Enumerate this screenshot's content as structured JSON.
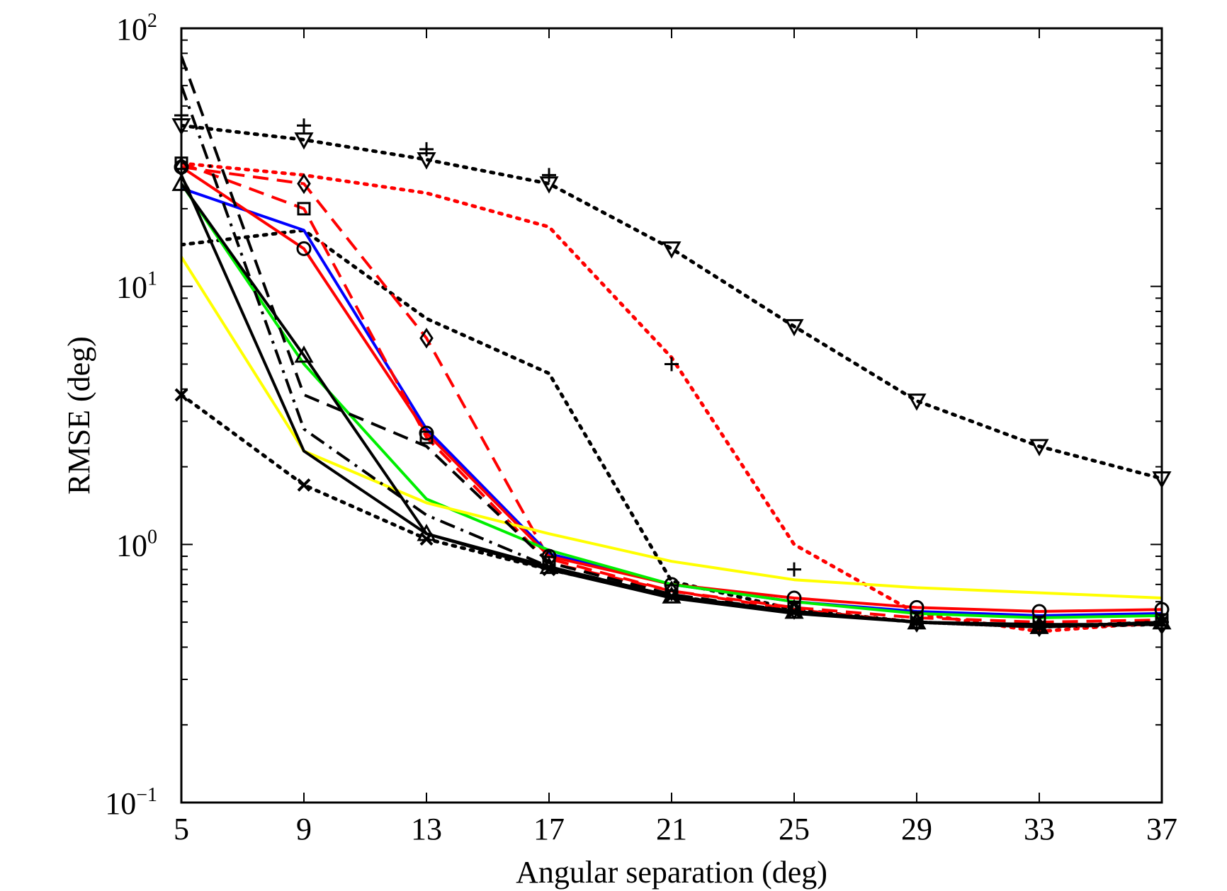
{
  "chart_data": {
    "type": "line",
    "title": "",
    "xlabel": "Angular separation (deg)",
    "ylabel": "RMSE (deg)",
    "x": [
      5,
      9,
      13,
      17,
      21,
      25,
      29,
      33,
      37
    ],
    "x_ticks": [
      "5",
      "9",
      "13",
      "17",
      "21",
      "25",
      "29",
      "33",
      "37"
    ],
    "xlim": [
      5,
      37
    ],
    "y_scale": "log",
    "ylim": [
      0.1,
      100
    ],
    "y_ticks": [
      {
        "base": "10",
        "exp": "−1",
        "value": 0.1
      },
      {
        "base": "10",
        "exp": "0",
        "value": 1
      },
      {
        "base": "10",
        "exp": "1",
        "value": 10
      },
      {
        "base": "10",
        "exp": "2",
        "value": 100
      }
    ],
    "grid": false,
    "legend": "none",
    "series": [
      {
        "color": "#000000",
        "dash": "dot",
        "marker": "triangle-down",
        "width": 5,
        "values": [
          42,
          37,
          31,
          25,
          14,
          7,
          3.6,
          2.4,
          1.8
        ]
      },
      {
        "color": "#000000",
        "dash": "none",
        "marker": "plus",
        "values": [
          46,
          42,
          34,
          27,
          5.0,
          0.8,
          0.49,
          0.48,
          0.5
        ]
      },
      {
        "color": "#ff0000",
        "dash": "dot",
        "marker": "none",
        "width": 5,
        "values": [
          30,
          27,
          23,
          17,
          5.3,
          1.0,
          0.54,
          0.46,
          0.5
        ]
      },
      {
        "color": "#000000",
        "dash": "dot",
        "marker": "none",
        "width": 5,
        "values": [
          14.5,
          16.5,
          7.5,
          4.6,
          0.72,
          0.56,
          0.5,
          0.48,
          0.49
        ]
      },
      {
        "color": "#ff0000",
        "dash": "dash",
        "marker": "diamond",
        "width": 4,
        "values": [
          29,
          25,
          6.3,
          0.88,
          0.66,
          0.56,
          0.5,
          0.48,
          0.49
        ]
      },
      {
        "color": "#0000ff",
        "dash": "solid",
        "marker": "none",
        "width": 4,
        "values": [
          24,
          16.5,
          2.8,
          0.92,
          0.7,
          0.6,
          0.55,
          0.53,
          0.54
        ]
      },
      {
        "color": "#ff0000",
        "dash": "solid",
        "marker": "circle",
        "width": 4,
        "values": [
          29,
          14,
          2.7,
          0.9,
          0.7,
          0.62,
          0.57,
          0.55,
          0.56
        ]
      },
      {
        "color": "#ff0000",
        "dash": "dash",
        "marker": "square",
        "width": 4,
        "values": [
          30,
          20,
          2.6,
          0.85,
          0.66,
          0.57,
          0.52,
          0.5,
          0.51
        ]
      },
      {
        "color": "#00ee00",
        "dash": "solid",
        "marker": "none",
        "width": 4,
        "values": [
          25,
          5.0,
          1.5,
          0.95,
          0.7,
          0.6,
          0.54,
          0.52,
          0.53
        ]
      },
      {
        "color": "#ffff00",
        "dash": "solid",
        "marker": "none",
        "width": 4,
        "values": [
          13,
          2.3,
          1.45,
          1.1,
          0.86,
          0.73,
          0.68,
          0.65,
          0.62
        ]
      },
      {
        "color": "#000000",
        "dash": "solid",
        "marker": "triangle-up",
        "width": 4,
        "values": [
          25,
          5.4,
          1.1,
          0.82,
          0.63,
          0.55,
          0.5,
          0.48,
          0.5
        ]
      },
      {
        "color": "#000000",
        "dash": "solid",
        "marker": "none",
        "width": 4,
        "values": [
          27,
          2.3,
          1.1,
          0.8,
          0.62,
          0.54,
          0.5,
          0.49,
          0.49
        ]
      },
      {
        "color": "#000000",
        "dash": "dash",
        "marker": "none",
        "width": 4,
        "values": [
          78,
          3.8,
          2.4,
          0.85,
          0.64,
          0.55,
          0.5,
          0.48,
          0.5
        ]
      },
      {
        "color": "#000000",
        "dash": "dashdot",
        "marker": "none",
        "width": 4,
        "values": [
          60,
          2.8,
          1.3,
          0.82,
          0.63,
          0.55,
          0.5,
          0.48,
          0.49
        ]
      },
      {
        "color": "#000000",
        "dash": "dot",
        "marker": "x",
        "width": 5,
        "values": [
          3.8,
          1.7,
          1.05,
          0.8,
          0.63,
          0.55,
          0.5,
          0.48,
          0.5
        ]
      }
    ]
  }
}
